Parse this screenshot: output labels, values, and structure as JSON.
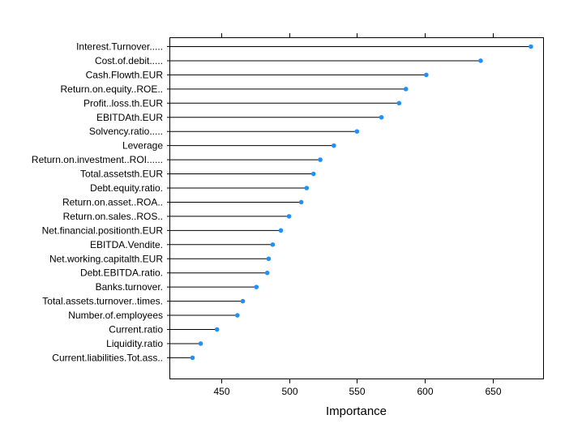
{
  "chart_data": {
    "type": "dotplot",
    "xlabel": "Importance",
    "ylabel": "",
    "title": "",
    "xlim": [
      412,
      687
    ],
    "xticks": [
      450,
      500,
      550,
      600,
      650
    ],
    "grid": false,
    "point_color": "#1E90FF",
    "line_color": "#000000",
    "items": [
      {
        "label": "Interest.Turnover.....",
        "value": 678
      },
      {
        "label": "Cost.of.debit.....",
        "value": 641
      },
      {
        "label": "Cash.Flowth.EUR",
        "value": 601
      },
      {
        "label": "Return.on.equity..ROE..",
        "value": 586
      },
      {
        "label": "Profit..loss.th.EUR",
        "value": 581
      },
      {
        "label": "EBITDAth.EUR",
        "value": 568
      },
      {
        "label": "Solvency.ratio.....",
        "value": 550
      },
      {
        "label": "Leverage",
        "value": 533
      },
      {
        "label": "Return.on.investment..ROI......",
        "value": 523
      },
      {
        "label": "Total.assetsth.EUR",
        "value": 518
      },
      {
        "label": "Debt.equity.ratio.",
        "value": 513
      },
      {
        "label": "Return.on.asset..ROA..",
        "value": 509
      },
      {
        "label": "Return.on.sales..ROS..",
        "value": 500
      },
      {
        "label": "Net.financial.positionth.EUR",
        "value": 494
      },
      {
        "label": "EBITDA.Vendite.",
        "value": 488
      },
      {
        "label": "Net.working.capitalth.EUR",
        "value": 485
      },
      {
        "label": "Debt.EBITDA.ratio.",
        "value": 484
      },
      {
        "label": "Banks.turnover.",
        "value": 476
      },
      {
        "label": "Total.assets.turnover..times.",
        "value": 466
      },
      {
        "label": "Number.of.employees",
        "value": 462
      },
      {
        "label": "Current.ratio",
        "value": 447
      },
      {
        "label": "Liquidity.ratio",
        "value": 435
      },
      {
        "label": "Current.liabilities.Tot.ass..",
        "value": 429
      }
    ]
  }
}
